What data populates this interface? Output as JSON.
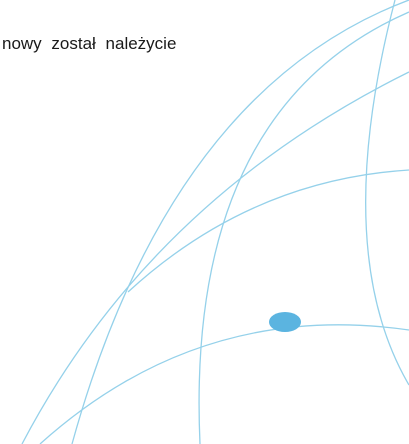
{
  "text": {
    "line": "nowy został należycie"
  }
}
